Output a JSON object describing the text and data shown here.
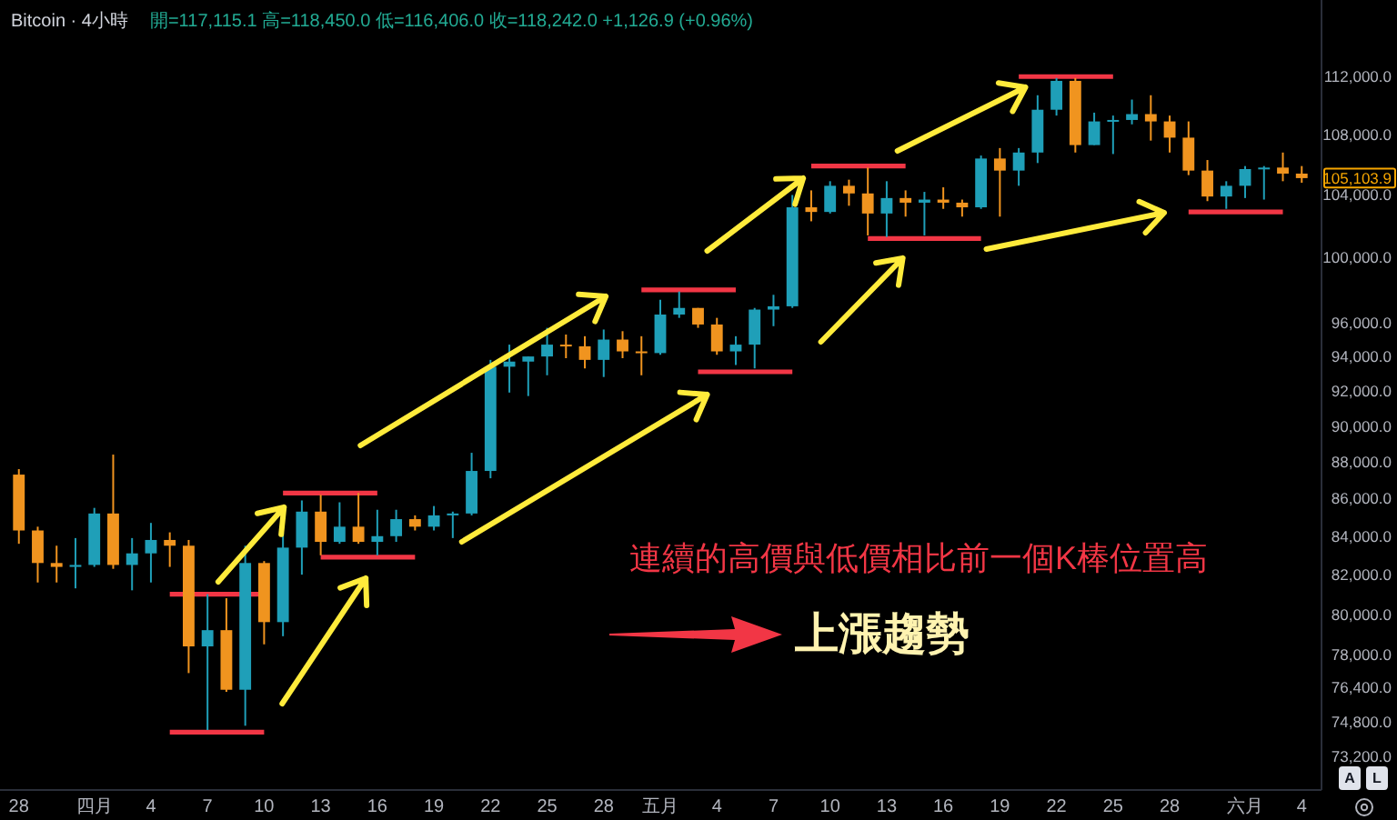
{
  "chart_data": {
    "type": "candlestick",
    "title": "Bitcoin · 4小時",
    "subtitle": "開=117,115.1 高=118,450.0 低=116,406.0 收=118,242.0 +1,126.9 (+0.96%)",
    "x": [
      "--03-28",
      "--03-29",
      "--03-30",
      "--03-31",
      "--04-01",
      "--04-02",
      "--04-03",
      "--04-04",
      "--04-05",
      "--04-06",
      "--04-07",
      "--04-08",
      "--04-09",
      "--04-10",
      "--04-11",
      "--04-12",
      "--04-13",
      "--04-14",
      "--04-15",
      "--04-16",
      "--04-17",
      "--04-18",
      "--04-19",
      "--04-20",
      "--04-21",
      "--04-22",
      "--04-23",
      "--04-24",
      "--04-25",
      "--04-26",
      "--04-27",
      "--04-28",
      "--04-29",
      "--04-30",
      "--05-01",
      "--05-02",
      "--05-03",
      "--05-04",
      "--05-05",
      "--05-06",
      "--05-07",
      "--05-08",
      "--05-09",
      "--05-10",
      "--05-11",
      "--05-12",
      "--05-13",
      "--05-14",
      "--05-15",
      "--05-16",
      "--05-17",
      "--05-18",
      "--05-19",
      "--05-20",
      "--05-21",
      "--05-22",
      "--05-23",
      "--05-24",
      "--05-25",
      "--05-26",
      "--05-27",
      "--05-28",
      "--05-29",
      "--05-30",
      "--05-31",
      "--06-01",
      "--06-02",
      "--06-03",
      "--06-04"
    ],
    "ohlc": [
      [
        87300,
        87600,
        83600,
        84300
      ],
      [
        84300,
        84500,
        81600,
        82600
      ],
      [
        82600,
        83500,
        81600,
        82400
      ],
      [
        82400,
        83900,
        81300,
        82500
      ],
      [
        82500,
        85500,
        82400,
        85200
      ],
      [
        85200,
        88400,
        82300,
        82500
      ],
      [
        82500,
        83900,
        81200,
        83100
      ],
      [
        83100,
        84700,
        81600,
        83800
      ],
      [
        83800,
        84200,
        82400,
        83500
      ],
      [
        83500,
        83800,
        77100,
        78400
      ],
      [
        78400,
        81000,
        74400,
        79200
      ],
      [
        79200,
        80800,
        76200,
        76300
      ],
      [
        76300,
        83500,
        74600,
        82600
      ],
      [
        82600,
        82700,
        78500,
        79600
      ],
      [
        79600,
        84200,
        78900,
        83400
      ],
      [
        83400,
        85900,
        82000,
        85300
      ],
      [
        85300,
        86200,
        83000,
        83700
      ],
      [
        83700,
        85800,
        83600,
        84500
      ],
      [
        84500,
        86300,
        83600,
        83700
      ],
      [
        83700,
        85400,
        83000,
        84000
      ],
      [
        84000,
        85400,
        83700,
        84900
      ],
      [
        84900,
        85100,
        84300,
        84500
      ],
      [
        84500,
        85600,
        84300,
        85100
      ],
      [
        85100,
        85300,
        83900,
        85200
      ],
      [
        85200,
        88500,
        85100,
        87500
      ],
      [
        87500,
        93800,
        87100,
        93400
      ],
      [
        93400,
        94700,
        91900,
        93700
      ],
      [
        93700,
        94000,
        91700,
        94000
      ],
      [
        94000,
        95700,
        92900,
        94700
      ],
      [
        94700,
        95300,
        93900,
        94600
      ],
      [
        94600,
        95200,
        93300,
        93800
      ],
      [
        93800,
        95600,
        92800,
        95000
      ],
      [
        95000,
        95500,
        93900,
        94300
      ],
      [
        94300,
        95200,
        92900,
        94200
      ],
      [
        94200,
        97400,
        94100,
        96500
      ],
      [
        96500,
        97900,
        96300,
        96900
      ],
      [
        96900,
        96900,
        95700,
        95900
      ],
      [
        95900,
        96300,
        94100,
        94300
      ],
      [
        94300,
        95200,
        93500,
        94700
      ],
      [
        94700,
        96900,
        93300,
        96800
      ],
      [
        96800,
        97700,
        95800,
        97000
      ],
      [
        97000,
        104000,
        96900,
        103200
      ],
      [
        103200,
        104300,
        102300,
        102900
      ],
      [
        102900,
        104900,
        102800,
        104600
      ],
      [
        104600,
        105000,
        103300,
        104100
      ],
      [
        104100,
        105800,
        101400,
        102800
      ],
      [
        102800,
        104900,
        101300,
        103800
      ],
      [
        103800,
        104300,
        102600,
        103500
      ],
      [
        103500,
        104200,
        101400,
        103700
      ],
      [
        103700,
        104500,
        103100,
        103500
      ],
      [
        103500,
        103700,
        102600,
        103200
      ],
      [
        103200,
        106600,
        103100,
        106400
      ],
      [
        106400,
        107100,
        102600,
        105600
      ],
      [
        105600,
        107100,
        104600,
        106800
      ],
      [
        106800,
        110700,
        106100,
        109700
      ],
      [
        109700,
        111900,
        109300,
        111700
      ],
      [
        111700,
        111900,
        106800,
        107300
      ],
      [
        107300,
        109500,
        107300,
        108900
      ],
      [
        108900,
        109300,
        106700,
        109000
      ],
      [
        109000,
        110400,
        108700,
        109400
      ],
      [
        109400,
        110700,
        107600,
        108900
      ],
      [
        108900,
        109300,
        106800,
        107800
      ],
      [
        107800,
        108900,
        105300,
        105600
      ],
      [
        105600,
        106300,
        103600,
        103900
      ],
      [
        103900,
        104900,
        103100,
        104600
      ],
      [
        104600,
        105900,
        103800,
        105700
      ],
      [
        105700,
        105900,
        103700,
        105800
      ],
      [
        105800,
        106800,
        104900,
        105400
      ],
      [
        105400,
        105900,
        104800,
        105103.9
      ]
    ],
    "colors": [
      "#f0941f",
      "#f0941f",
      "#f0941f",
      "#1f9fb8",
      "#1f9fb8",
      "#f0941f",
      "#1f9fb8",
      "#1f9fb8",
      "#f0941f",
      "#f0941f",
      "#1f9fb8",
      "#f0941f",
      "#1f9fb8",
      "#f0941f",
      "#1f9fb8",
      "#1f9fb8",
      "#f0941f",
      "#1f9fb8",
      "#f0941f",
      "#1f9fb8",
      "#1f9fb8",
      "#f0941f",
      "#1f9fb8",
      "#1f9fb8",
      "#1f9fb8",
      "#1f9fb8",
      "#1f9fb8",
      "#1f9fb8",
      "#1f9fb8",
      "#f0941f",
      "#f0941f",
      "#1f9fb8",
      "#f0941f",
      "#f0941f",
      "#1f9fb8",
      "#1f9fb8",
      "#f0941f",
      "#f0941f",
      "#1f9fb8",
      "#1f9fb8",
      "#1f9fb8",
      "#1f9fb8",
      "#f0941f",
      "#1f9fb8",
      "#f0941f",
      "#f0941f",
      "#1f9fb8",
      "#f0941f",
      "#1f9fb8",
      "#f0941f",
      "#f0941f",
      "#1f9fb8",
      "#f0941f",
      "#1f9fb8",
      "#1f9fb8",
      "#1f9fb8",
      "#f0941f",
      "#1f9fb8",
      "#1f9fb8",
      "#1f9fb8",
      "#f0941f",
      "#f0941f",
      "#f0941f",
      "#f0941f",
      "#1f9fb8",
      "#1f9fb8",
      "#1f9fb8",
      "#f0941f",
      "#f0941f"
    ],
    "series": [
      {
        "type": "line",
        "color": "#f23645",
        "x": [
          "--04-05",
          "--04-10"
        ],
        "values": [
          81000,
          81000
        ]
      },
      {
        "type": "line",
        "color": "#f23645",
        "x": [
          "--04-05",
          "--04-10"
        ],
        "values": [
          74300,
          74300
        ]
      },
      {
        "type": "line",
        "color": "#f23645",
        "x": [
          "--04-11",
          "--04-16"
        ],
        "values": [
          86300,
          86300
        ]
      },
      {
        "type": "line",
        "color": "#f23645",
        "x": [
          "--04-13",
          "--04-18"
        ],
        "values": [
          82900,
          82900
        ]
      },
      {
        "type": "line",
        "color": "#f23645",
        "x": [
          "--04-30",
          "--05-05"
        ],
        "values": [
          98000,
          98000
        ]
      },
      {
        "type": "line",
        "color": "#f23645",
        "x": [
          "--05-03",
          "--05-08"
        ],
        "values": [
          93100,
          93100
        ]
      },
      {
        "type": "line",
        "color": "#f23645",
        "x": [
          "--05-09",
          "--05-14"
        ],
        "values": [
          105900,
          105900
        ]
      },
      {
        "type": "line",
        "color": "#f23645",
        "x": [
          "--05-12",
          "--05-18"
        ],
        "values": [
          101200,
          101200
        ]
      },
      {
        "type": "line",
        "color": "#f23645",
        "x": [
          "--05-20",
          "--05-25"
        ],
        "values": [
          112000,
          112000
        ]
      },
      {
        "type": "line",
        "color": "#f23645",
        "x": [
          "--05-29",
          "--06-03"
        ],
        "values": [
          102900,
          102900
        ]
      }
    ],
    "xlim": [
      "--03-27",
      "--06-05"
    ],
    "xticks": [
      {
        "value": "--03-28",
        "label": "28"
      },
      {
        "value": "--04-01",
        "label": "四月"
      },
      {
        "value": "--04-04",
        "label": "4"
      },
      {
        "value": "--04-07",
        "label": "7"
      },
      {
        "value": "--04-10",
        "label": "10"
      },
      {
        "value": "--04-13",
        "label": "13"
      },
      {
        "value": "--04-16",
        "label": "16"
      },
      {
        "value": "--04-19",
        "label": "19"
      },
      {
        "value": "--04-22",
        "label": "22"
      },
      {
        "value": "--04-25",
        "label": "25"
      },
      {
        "value": "--04-28",
        "label": "28"
      },
      {
        "value": "--05-01",
        "label": "五月"
      },
      {
        "value": "--05-04",
        "label": "4"
      },
      {
        "value": "--05-07",
        "label": "7"
      },
      {
        "value": "--05-10",
        "label": "10"
      },
      {
        "value": "--05-13",
        "label": "13"
      },
      {
        "value": "--05-16",
        "label": "16"
      },
      {
        "value": "--05-19",
        "label": "19"
      },
      {
        "value": "--05-22",
        "label": "22"
      },
      {
        "value": "--05-25",
        "label": "25"
      },
      {
        "value": "--05-28",
        "label": "28"
      },
      {
        "value": "--06-01",
        "label": "六月"
      },
      {
        "value": "--06-04",
        "label": "4"
      }
    ],
    "log": true,
    "ylim": [
      71700,
      117500
    ],
    "yticks": [
      {
        "value": 112000,
        "label": "112,000.0"
      },
      {
        "value": 108000,
        "label": "108,000.0"
      },
      {
        "value": 104000,
        "label": "104,000.0"
      },
      {
        "value": 100000,
        "label": "100,000.0"
      },
      {
        "value": 96000,
        "label": "96,000.0"
      },
      {
        "value": 94000,
        "label": "94,000.0"
      },
      {
        "value": 92000,
        "label": "92,000.0"
      },
      {
        "value": 90000,
        "label": "90,000.0"
      },
      {
        "value": 88000,
        "label": "88,000.0"
      },
      {
        "value": 86000,
        "label": "86,000.0"
      },
      {
        "value": 84000,
        "label": "84,000.0"
      },
      {
        "value": 82000,
        "label": "82,000.0"
      },
      {
        "value": 80000,
        "label": "80,000.0"
      },
      {
        "value": 78000,
        "label": "78,000.0"
      },
      {
        "value": 76400,
        "label": "76,400.0"
      },
      {
        "value": 74800,
        "label": "74,800.0"
      },
      {
        "value": 73200,
        "label": "73,200.0"
      }
    ],
    "annotations": [
      "連續的高價與低價相比前一個K棒位置高",
      "上漲趨勢",
      "105,103.9",
      "A",
      "L"
    ]
  }
}
